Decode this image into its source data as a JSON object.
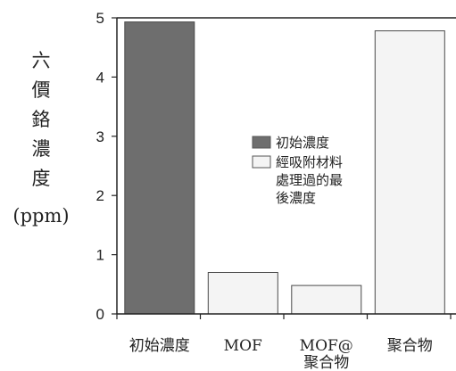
{
  "chart_data": {
    "type": "bar",
    "title": "",
    "ylabel_chars": [
      "六",
      "價",
      "鉻",
      "濃",
      "度"
    ],
    "ylabel_unit": "(ppm)",
    "ylim": [
      0,
      5
    ],
    "yticks": [
      "0",
      "1",
      "2",
      "3",
      "4",
      "5"
    ],
    "categories": [
      {
        "lines": [
          "初始濃度"
        ]
      },
      {
        "lines": [
          "MOF"
        ]
      },
      {
        "lines": [
          "MOF@",
          "聚合物"
        ]
      },
      {
        "lines": [
          "聚合物"
        ]
      }
    ],
    "series": [
      {
        "name": "初始濃度",
        "color": "#6e6e6e",
        "values": [
          4.93,
          null,
          null,
          null
        ]
      },
      {
        "name": "經吸附材料處理過的最後濃度",
        "color": "#f4f4f4",
        "values": [
          null,
          0.7,
          0.48,
          4.78
        ]
      }
    ],
    "legend": {
      "placement": "center",
      "entries": [
        {
          "lines": [
            "初始濃度"
          ],
          "color": "#6e6e6e"
        },
        {
          "lines": [
            "經吸附材料",
            "處理過的最",
            "後濃度"
          ],
          "color": "#f4f4f4"
        }
      ]
    },
    "grid": false
  }
}
